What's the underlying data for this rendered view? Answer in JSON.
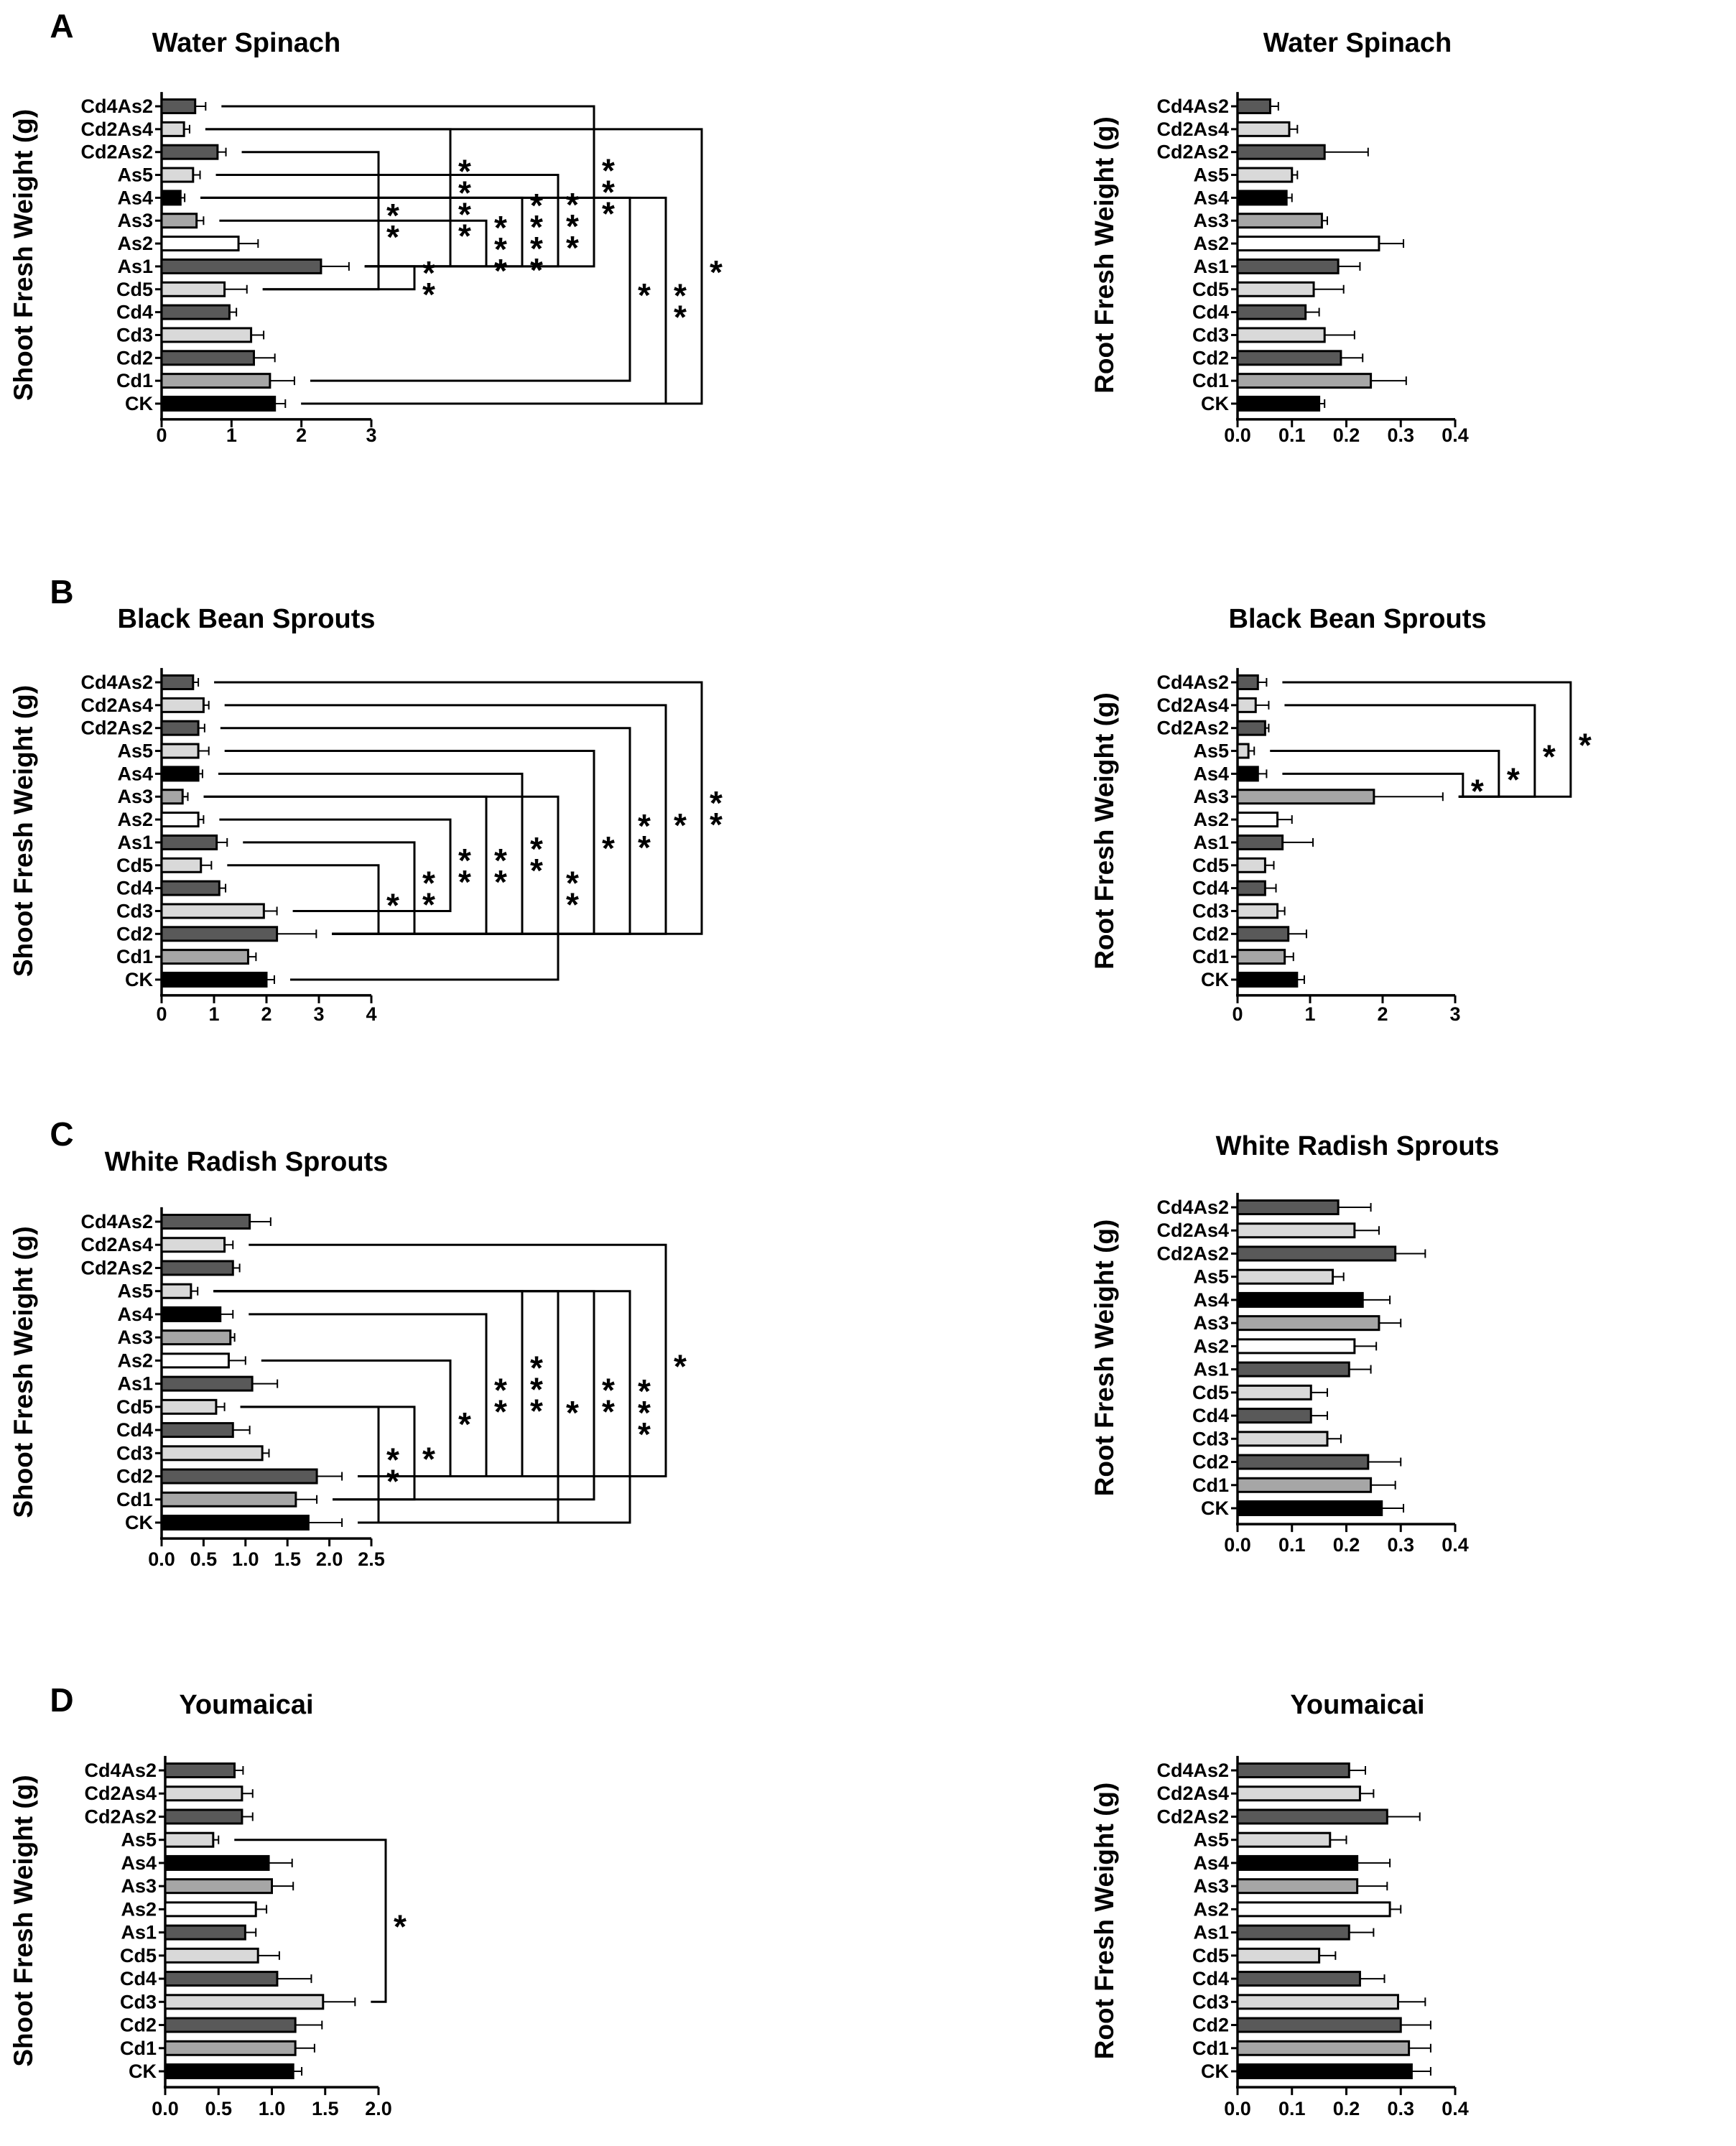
{
  "figure": {
    "panel_labels": [
      "A",
      "B",
      "C",
      "D"
    ]
  },
  "colors": {
    "black": "#000000",
    "dark_gray": "#595959",
    "mid_gray": "#a6a6a6",
    "light_gray": "#d9d9d9",
    "white": "#ffffff"
  },
  "chart_data": [
    {
      "id": "A-shoot",
      "panel": "A",
      "type": "bar",
      "orientation": "horizontal",
      "title": "Water Spinach",
      "xlabel": "",
      "ylabel": "Shoot Fresh Weight (g)",
      "xlim": [
        0,
        3
      ],
      "xticks": [
        "0",
        "1",
        "2",
        "3"
      ],
      "categories": [
        "Cd4As2",
        "Cd2As4",
        "Cd2As2",
        "As5",
        "As4",
        "As3",
        "As2",
        "As1",
        "Cd5",
        "Cd4",
        "Cd3",
        "Cd2",
        "Cd1",
        "CK"
      ],
      "values": [
        0.48,
        0.32,
        0.8,
        0.45,
        0.27,
        0.5,
        1.1,
        2.28,
        0.9,
        0.97,
        1.28,
        1.32,
        1.55,
        1.62
      ],
      "errors": [
        0.15,
        0.08,
        0.12,
        0.1,
        0.06,
        0.1,
        0.28,
        0.4,
        0.32,
        0.1,
        0.18,
        0.3,
        0.35,
        0.15
      ],
      "comparisons": [
        {
          "from": "Cd2As2",
          "to": "Cd5",
          "stars": "**"
        },
        {
          "from": "As1",
          "to": "Cd5",
          "stars": "**"
        },
        {
          "from": "Cd2As4",
          "to": "As1",
          "stars": "****"
        },
        {
          "from": "As3",
          "to": "As1",
          "stars": "***"
        },
        {
          "from": "As4",
          "to": "As1",
          "stars": "****"
        },
        {
          "from": "As5",
          "to": "As1",
          "stars": "***"
        },
        {
          "from": "Cd4As2",
          "to": "As1",
          "stars": "***"
        },
        {
          "from": "As4",
          "to": "Cd1",
          "stars": "*"
        },
        {
          "from": "As4",
          "to": "CK",
          "stars": "**"
        },
        {
          "from": "Cd2As4",
          "to": "CK",
          "stars": "*"
        }
      ]
    },
    {
      "id": "A-root",
      "panel": "",
      "type": "bar",
      "orientation": "horizontal",
      "title": "Water Spinach",
      "xlabel": "",
      "ylabel": "Root Fresh Weight (g)",
      "xlim": [
        0,
        0.4
      ],
      "xticks": [
        "0.0",
        "0.1",
        "0.2",
        "0.3",
        "0.4"
      ],
      "categories": [
        "Cd4As2",
        "Cd2As4",
        "Cd2As2",
        "As5",
        "As4",
        "As3",
        "As2",
        "As1",
        "Cd5",
        "Cd4",
        "Cd3",
        "Cd2",
        "Cd1",
        "CK"
      ],
      "values": [
        0.06,
        0.095,
        0.16,
        0.1,
        0.09,
        0.155,
        0.26,
        0.185,
        0.14,
        0.125,
        0.16,
        0.19,
        0.245,
        0.15
      ],
      "errors": [
        0.015,
        0.015,
        0.08,
        0.01,
        0.01,
        0.01,
        0.045,
        0.04,
        0.055,
        0.025,
        0.055,
        0.04,
        0.065,
        0.01
      ],
      "comparisons": []
    },
    {
      "id": "B-shoot",
      "panel": "B",
      "type": "bar",
      "orientation": "horizontal",
      "title": "Black Bean Sprouts",
      "xlabel": "",
      "ylabel": "Shoot Fresh Weight (g)",
      "xlim": [
        0,
        4
      ],
      "xticks": [
        "0",
        "1",
        "2",
        "3",
        "4"
      ],
      "categories": [
        "Cd4As2",
        "Cd2As4",
        "Cd2As2",
        "As5",
        "As4",
        "As3",
        "As2",
        "As1",
        "Cd5",
        "Cd4",
        "Cd3",
        "Cd2",
        "Cd1",
        "CK"
      ],
      "values": [
        0.6,
        0.8,
        0.7,
        0.7,
        0.7,
        0.4,
        0.7,
        1.05,
        0.75,
        1.1,
        1.95,
        2.2,
        1.65,
        2.0
      ],
      "errors": [
        0.1,
        0.1,
        0.12,
        0.2,
        0.08,
        0.1,
        0.1,
        0.2,
        0.2,
        0.12,
        0.25,
        0.75,
        0.15,
        0.15
      ],
      "comparisons": [
        {
          "from": "Cd5",
          "to": "Cd2",
          "stars": "*"
        },
        {
          "from": "As1",
          "to": "Cd2",
          "stars": "**"
        },
        {
          "from": "As2",
          "to": "Cd3",
          "stars": "**"
        },
        {
          "from": "As3",
          "to": "Cd2",
          "stars": "**"
        },
        {
          "from": "As4",
          "to": "Cd2",
          "stars": "**"
        },
        {
          "from": "As3",
          "to": "CK",
          "stars": "**"
        },
        {
          "from": "As5",
          "to": "Cd2",
          "stars": "*"
        },
        {
          "from": "Cd2As2",
          "to": "Cd2",
          "stars": "**"
        },
        {
          "from": "Cd2As4",
          "to": "Cd2",
          "stars": "*"
        },
        {
          "from": "Cd4As2",
          "to": "Cd2",
          "stars": "**"
        }
      ]
    },
    {
      "id": "B-root",
      "panel": "",
      "type": "bar",
      "orientation": "horizontal",
      "title": "Black Bean Sprouts",
      "xlabel": "",
      "ylabel": "Root Fresh Weight (g)",
      "xlim": [
        0,
        3
      ],
      "xticks": [
        "0",
        "1",
        "2",
        "3"
      ],
      "categories": [
        "Cd4As2",
        "Cd2As4",
        "Cd2As2",
        "As5",
        "As4",
        "As3",
        "As2",
        "As1",
        "Cd5",
        "Cd4",
        "Cd3",
        "Cd2",
        "Cd1",
        "CK"
      ],
      "values": [
        0.28,
        0.25,
        0.38,
        0.15,
        0.28,
        1.88,
        0.55,
        0.62,
        0.38,
        0.38,
        0.55,
        0.7,
        0.65,
        0.82
      ],
      "errors": [
        0.12,
        0.18,
        0.05,
        0.08,
        0.12,
        0.95,
        0.2,
        0.42,
        0.12,
        0.15,
        0.1,
        0.25,
        0.12,
        0.1
      ],
      "comparisons": [
        {
          "from": "As4",
          "to": "As3",
          "stars": "*"
        },
        {
          "from": "As5",
          "to": "As3",
          "stars": "*"
        },
        {
          "from": "Cd2As4",
          "to": "As3",
          "stars": "*"
        },
        {
          "from": "Cd4As2",
          "to": "As3",
          "stars": "*"
        }
      ]
    },
    {
      "id": "C-shoot",
      "panel": "C",
      "type": "bar",
      "orientation": "horizontal",
      "title": "White Radish Sprouts",
      "xlabel": "",
      "ylabel": "Shoot Fresh Weight (g)",
      "xlim": [
        0,
        2.5
      ],
      "xticks": [
        "0.0",
        "0.5",
        "1.0",
        "1.5",
        "2.0",
        "2.5"
      ],
      "categories": [
        "Cd4As2",
        "Cd2As4",
        "Cd2As2",
        "As5",
        "As4",
        "As3",
        "As2",
        "As1",
        "Cd5",
        "Cd4",
        "Cd3",
        "Cd2",
        "Cd1",
        "CK"
      ],
      "values": [
        1.05,
        0.75,
        0.85,
        0.35,
        0.7,
        0.82,
        0.8,
        1.08,
        0.65,
        0.85,
        1.2,
        1.85,
        1.6,
        1.75
      ],
      "errors": [
        0.25,
        0.1,
        0.08,
        0.08,
        0.15,
        0.05,
        0.2,
        0.3,
        0.1,
        0.2,
        0.08,
        0.3,
        0.25,
        0.4
      ],
      "comparisons": [
        {
          "from": "Cd5",
          "to": "CK",
          "stars": "**"
        },
        {
          "from": "Cd5",
          "to": "Cd1",
          "stars": "*"
        },
        {
          "from": "As2",
          "to": "Cd2",
          "stars": "*"
        },
        {
          "from": "As4",
          "to": "Cd2",
          "stars": "**"
        },
        {
          "from": "As5",
          "to": "Cd2",
          "stars": "***"
        },
        {
          "from": "As5",
          "to": "CK",
          "stars": "*"
        },
        {
          "from": "As5",
          "to": "Cd1",
          "stars": "**"
        },
        {
          "from": "As5",
          "to": "CK",
          "stars": "***"
        },
        {
          "from": "Cd2As4",
          "to": "Cd2",
          "stars": "*"
        }
      ]
    },
    {
      "id": "C-root",
      "panel": "",
      "type": "bar",
      "orientation": "horizontal",
      "title": "White Radish Sprouts",
      "xlabel": "",
      "ylabel": "Root Fresh Weight (g)",
      "xlim": [
        0,
        0.4
      ],
      "xticks": [
        "0.0",
        "0.1",
        "0.2",
        "0.3",
        "0.4"
      ],
      "categories": [
        "Cd4As2",
        "Cd2As4",
        "Cd2As2",
        "As5",
        "As4",
        "As3",
        "As2",
        "As1",
        "Cd5",
        "Cd4",
        "Cd3",
        "Cd2",
        "Cd1",
        "CK"
      ],
      "values": [
        0.185,
        0.215,
        0.29,
        0.175,
        0.23,
        0.26,
        0.215,
        0.205,
        0.135,
        0.135,
        0.165,
        0.24,
        0.245,
        0.265
      ],
      "errors": [
        0.06,
        0.045,
        0.055,
        0.02,
        0.05,
        0.04,
        0.04,
        0.04,
        0.03,
        0.03,
        0.025,
        0.06,
        0.045,
        0.04
      ],
      "comparisons": []
    },
    {
      "id": "D-shoot",
      "panel": "D",
      "type": "bar",
      "orientation": "horizontal",
      "title": "Youmaicai",
      "xlabel": "",
      "ylabel": "Shoot Fresh Weight (g)",
      "xlim": [
        0,
        2.0
      ],
      "xticks": [
        "0.0",
        "0.5",
        "1.0",
        "1.5",
        "2.0"
      ],
      "categories": [
        "Cd4As2",
        "Cd2As4",
        "Cd2As2",
        "As5",
        "As4",
        "As3",
        "As2",
        "As1",
        "Cd5",
        "Cd4",
        "Cd3",
        "Cd2",
        "Cd1",
        "CK"
      ],
      "values": [
        0.65,
        0.72,
        0.72,
        0.45,
        0.97,
        1.0,
        0.85,
        0.75,
        0.87,
        1.05,
        1.48,
        1.22,
        1.22,
        1.2
      ],
      "errors": [
        0.08,
        0.1,
        0.1,
        0.05,
        0.22,
        0.2,
        0.1,
        0.1,
        0.2,
        0.32,
        0.3,
        0.25,
        0.18,
        0.08
      ],
      "comparisons": [
        {
          "from": "As5",
          "to": "Cd3",
          "stars": "*"
        }
      ]
    },
    {
      "id": "D-root",
      "panel": "",
      "type": "bar",
      "orientation": "horizontal",
      "title": "Youmaicai",
      "xlabel": "",
      "ylabel": "Root Fresh Weight (g)",
      "xlim": [
        0,
        0.4
      ],
      "xticks": [
        "0.0",
        "0.1",
        "0.2",
        "0.3",
        "0.4"
      ],
      "categories": [
        "Cd4As2",
        "Cd2As4",
        "Cd2As2",
        "As5",
        "As4",
        "As3",
        "As2",
        "As1",
        "Cd5",
        "Cd4",
        "Cd3",
        "Cd2",
        "Cd1",
        "CK"
      ],
      "values": [
        0.205,
        0.225,
        0.275,
        0.17,
        0.22,
        0.22,
        0.28,
        0.205,
        0.15,
        0.225,
        0.295,
        0.3,
        0.315,
        0.32
      ],
      "errors": [
        0.03,
        0.025,
        0.06,
        0.03,
        0.06,
        0.055,
        0.02,
        0.045,
        0.03,
        0.045,
        0.05,
        0.055,
        0.04,
        0.035
      ],
      "comparisons": []
    }
  ]
}
